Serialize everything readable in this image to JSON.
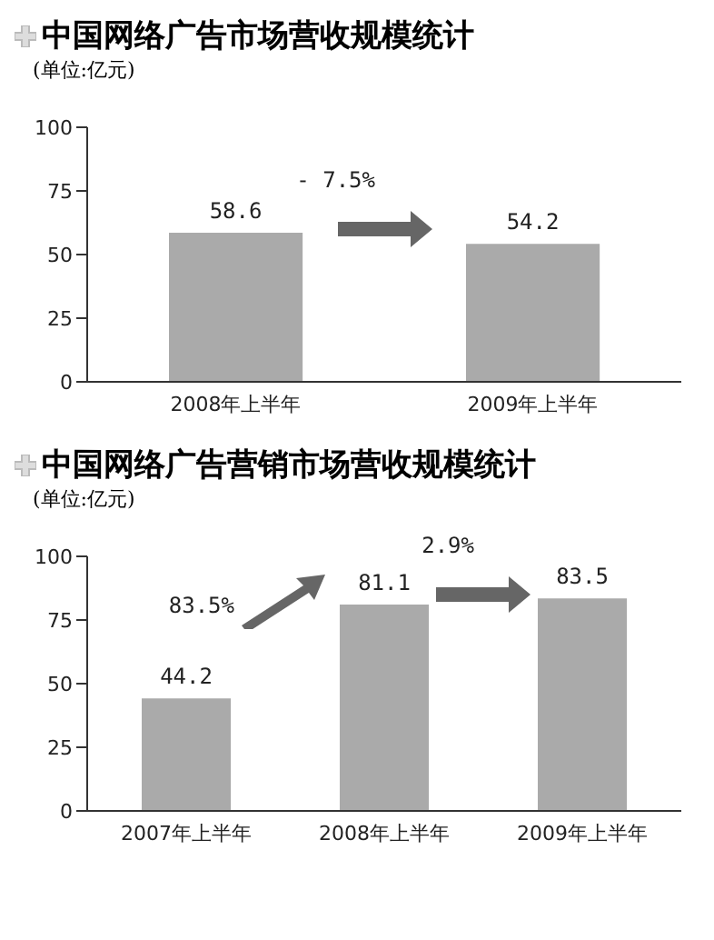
{
  "chart_data": [
    {
      "type": "bar",
      "title": "中国网络广告市场营收规模统计",
      "subtitle": "(单位:亿元)",
      "categories": [
        "2008年上半年",
        "2009年上半年"
      ],
      "series": [
        {
          "color": "#aaaaaa",
          "values": [
            58.6,
            54.2
          ]
        }
      ],
      "ylim": [
        0,
        100
      ],
      "yticks": [
        0,
        25,
        50,
        75,
        100
      ],
      "data_labels": true,
      "annotations": [
        "- 7.5%"
      ]
    },
    {
      "type": "bar",
      "title": "中国网络广告营销市场营收规模统计",
      "subtitle": "(单位:亿元)",
      "categories": [
        "2007年上半年",
        "2008年上半年",
        "2009年上半年"
      ],
      "series": [
        {
          "color": "#aaaaaa",
          "values": [
            44.2,
            81.1,
            83.5
          ]
        }
      ],
      "ylim": [
        0,
        100
      ],
      "yticks": [
        0,
        25,
        50,
        75,
        100
      ],
      "data_labels": true,
      "annotations": [
        "83.5%",
        "2.9%"
      ]
    }
  ]
}
